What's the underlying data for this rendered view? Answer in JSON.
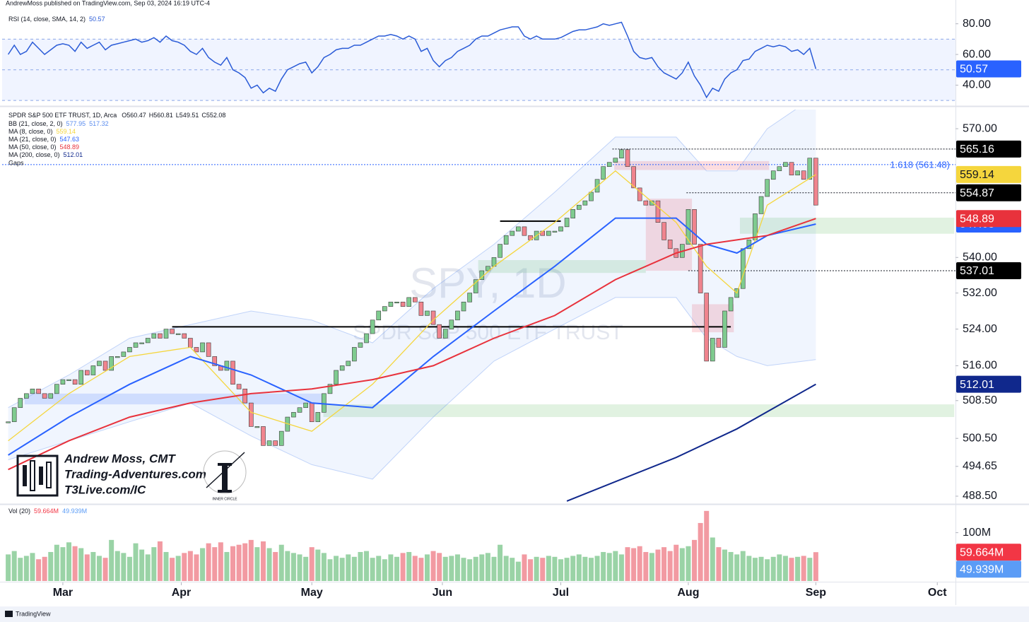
{
  "header": {
    "text": "AndrewMoss published on TradingView.com, Sep 03, 2024 16:19 UTC-4"
  },
  "footer": {
    "brand": "TradingView"
  },
  "branding": {
    "name": "Andrew Moss, CMT",
    "site": "Trading-Adventures.com",
    "link": "T3Live.com/IC",
    "badge": "INNER CIRCLE"
  },
  "chart_data": [
    {
      "type": "line",
      "title": "RSI (14, close, SMA, 14, 2)",
      "color": "#2a5bd7",
      "band_color": "#2962ff",
      "ylim": [
        27.3,
        90.9
      ],
      "yticks": [
        {
          "value": 80,
          "label": "80.00"
        },
        {
          "value": 60,
          "label": "60.00"
        },
        {
          "value": 40,
          "label": "40.00"
        }
      ],
      "band": [
        30,
        70
      ],
      "midline": 50,
      "xlim": [
        -1,
        156
      ],
      "values": [
        60,
        66,
        60,
        62,
        68,
        64,
        60,
        63,
        66,
        67,
        66,
        62,
        68,
        64,
        66,
        68,
        63,
        66,
        67,
        68,
        69,
        70,
        68,
        69,
        71,
        68,
        72,
        69,
        68,
        66,
        62,
        60,
        64,
        58,
        55,
        53,
        58,
        50,
        48,
        45,
        38,
        40,
        35,
        38,
        36,
        44,
        50,
        52,
        54,
        55,
        48,
        52,
        58,
        60,
        63,
        64,
        64,
        66,
        66,
        68,
        70,
        72,
        72,
        73,
        72,
        70,
        72,
        70,
        62,
        64,
        56,
        52,
        56,
        58,
        62,
        64,
        66,
        70,
        72,
        72,
        74,
        76,
        77,
        78,
        78,
        72,
        70,
        72,
        70,
        70,
        70,
        71,
        73,
        75,
        76,
        76,
        77,
        78,
        80,
        79,
        80,
        81,
        72,
        62,
        58,
        57,
        58,
        52,
        48,
        46,
        44,
        48,
        55,
        46,
        40,
        32,
        38,
        36,
        44,
        48,
        50,
        56,
        57,
        62,
        64,
        66,
        65,
        66,
        65,
        62,
        63,
        60,
        64,
        50.57
      ]
    },
    {
      "type": "candlestick",
      "title": "SPDR S&P 500 ETF TRUST, 1D, Arca",
      "quote": [
        "O560.47",
        "H560.81",
        "L549.51",
        "C552.08"
      ],
      "watermark": [
        "SPY, 1D",
        "SPDR S&P 500 ETF TRUST"
      ],
      "gaps_label": "Gaps",
      "log_scale": true,
      "ylim": [
        487.05,
        574.6
      ],
      "xlim": [
        -1,
        156
      ],
      "yticks": [
        {
          "value": 570,
          "label": "570.00"
        },
        {
          "value": 540,
          "label": "540.00"
        },
        {
          "value": 532,
          "label": "532.00"
        },
        {
          "value": 524,
          "label": "524.00"
        },
        {
          "value": 516,
          "label": "516.00"
        },
        {
          "value": 508.5,
          "label": "508.50"
        },
        {
          "value": 500.5,
          "label": "500.50"
        },
        {
          "value": 494.65,
          "label": "494.65"
        },
        {
          "value": 488.5,
          "label": "488.50"
        }
      ],
      "up_color": "#7fcb8f",
      "down_color": "#f0848e",
      "close": [
        504,
        507,
        509,
        510,
        511,
        510,
        509,
        510,
        512,
        513,
        513,
        512,
        515,
        514,
        516,
        517,
        515,
        518,
        518,
        519,
        520,
        521,
        521,
        522,
        523,
        522,
        524,
        523,
        523,
        522,
        520,
        519,
        521,
        518,
        516,
        515,
        517,
        512,
        511,
        508,
        503,
        503,
        499,
        500,
        499,
        502,
        505,
        506,
        507,
        508,
        504,
        506,
        510,
        512,
        515,
        516,
        517,
        520,
        521,
        523,
        526,
        528,
        529,
        530,
        530,
        529,
        531,
        530,
        527,
        528,
        525,
        522,
        524,
        526,
        528,
        530,
        532,
        535,
        537,
        538,
        540,
        543,
        545,
        546,
        547,
        545,
        544,
        546,
        545,
        546,
        546,
        547,
        549,
        551,
        552,
        553,
        555,
        558,
        561,
        562,
        563,
        565,
        561,
        556,
        553,
        552,
        553,
        548,
        544,
        542,
        540,
        543,
        551,
        543,
        532,
        517,
        522,
        520,
        528,
        531,
        533,
        542,
        544,
        550,
        554,
        558,
        560,
        561,
        562,
        559,
        560,
        558,
        563,
        552
      ],
      "indicators": [
        {
          "name": "BB (21, close, 2, 0)",
          "color": "#5b8def",
          "x": [
            0,
            10,
            20,
            30,
            40,
            50,
            60,
            70,
            80,
            90,
            100,
            110,
            115,
            120,
            125,
            133
          ],
          "upper": [
            507,
            514,
            522,
            525,
            528,
            526,
            521,
            533,
            543,
            555,
            568,
            568,
            560,
            560,
            570,
            577.95
          ],
          "lower": [
            496,
            500,
            504,
            508,
            501,
            495,
            492,
            505,
            517,
            524,
            531,
            531,
            522,
            518,
            516,
            517.32
          ]
        },
        {
          "name": "MA (8, close, 0)",
          "color": "#f5d63d",
          "text_color": "#131722",
          "x": [
            0,
            10,
            20,
            30,
            40,
            50,
            60,
            70,
            80,
            90,
            100,
            110,
            115,
            120,
            125,
            133
          ],
          "values": [
            500,
            510,
            518,
            520,
            506,
            502,
            512,
            526,
            538,
            548,
            560,
            548,
            538,
            532,
            552,
            559.14
          ]
        },
        {
          "name": "MA (21, close, 0)",
          "color": "#2962ff",
          "text_color": "#ffffff",
          "x": [
            0,
            10,
            20,
            30,
            40,
            50,
            60,
            70,
            80,
            90,
            100,
            110,
            115,
            120,
            125,
            133
          ],
          "values": [
            497,
            505,
            512,
            518,
            514,
            508,
            507,
            518,
            528,
            538,
            549,
            549,
            543,
            541,
            545,
            547.63
          ]
        },
        {
          "name": "MA (50, close, 0)",
          "color": "#e8323c",
          "text_color": "#ffffff",
          "x": [
            0,
            10,
            20,
            30,
            40,
            50,
            60,
            70,
            80,
            90,
            100,
            110,
            115,
            120,
            125,
            133
          ],
          "values": [
            494,
            500,
            505,
            508,
            510,
            511,
            513,
            516,
            522,
            527,
            535,
            541,
            543,
            544,
            545,
            548.89
          ]
        },
        {
          "name": "MA (200, close, 0)",
          "color": "#10288c",
          "text_color": "#ffffff",
          "x": [
            92,
            100,
            110,
            120,
            133
          ],
          "values": [
            487.5,
            491.5,
            496.5,
            502.5,
            512.01
          ]
        }
      ],
      "levels": [
        {
          "value": 565.16,
          "from": 99.5
        },
        {
          "value": 554.87,
          "from": 111.7
        },
        {
          "value": 537.01,
          "from": 112
        }
      ],
      "fib": {
        "value": 561.48,
        "label": "1.618 (561.48)",
        "color": "#2962ff"
      },
      "trendlines": [
        {
          "value": 524.5,
          "from": 27,
          "to": 119
        },
        {
          "value": 548.3,
          "from": 81,
          "to": 91
        }
      ],
      "zones": [
        {
          "from": 2.7,
          "to": 51.9,
          "low": 507.7,
          "high": 510,
          "color": "#2962ff"
        },
        {
          "from": 51.9,
          "to": 155.8,
          "low": 505,
          "high": 507.7,
          "color": "#4caf50"
        },
        {
          "from": 120.5,
          "to": 155.8,
          "low": 545.4,
          "high": 549.1,
          "color": "#4caf50"
        },
        {
          "from": 77.4,
          "to": 105,
          "low": 536.5,
          "high": 539.4,
          "color": "#4caf50"
        },
        {
          "from": 99.8,
          "to": 125.3,
          "low": 560.2,
          "high": 562.3,
          "color": "#f23645"
        },
        {
          "from": 105,
          "to": 112.6,
          "low": 537,
          "high": 553.5,
          "color": "#f23645"
        },
        {
          "from": 112.6,
          "to": 119.5,
          "low": 523.3,
          "high": 529.5,
          "color": "#f23645"
        }
      ]
    },
    {
      "type": "bar",
      "title": "Vol (20)",
      "ylim": [
        0,
        155
      ],
      "xlim": [
        -1,
        156
      ],
      "yticks": [
        {
          "value": 100,
          "label": "100M"
        }
      ],
      "xticks": [
        {
          "value": 9,
          "label": "Mar"
        },
        {
          "value": 28.5,
          "label": "Apr"
        },
        {
          "value": 50,
          "label": "May"
        },
        {
          "value": 71.5,
          "label": "Jun"
        },
        {
          "value": 91,
          "label": "Jul"
        },
        {
          "value": 112,
          "label": "Aug"
        },
        {
          "value": 133,
          "label": "Sep"
        },
        {
          "value": 153,
          "label": "Oct"
        }
      ],
      "up_color": "#9ad3a6",
      "down_color": "#f29aa2",
      "values": [
        55,
        62,
        48,
        52,
        58,
        45,
        50,
        60,
        75,
        70,
        80,
        72,
        68,
        55,
        60,
        52,
        48,
        85,
        62,
        58,
        50,
        78,
        65,
        55,
        70,
        82,
        60,
        48,
        52,
        58,
        62,
        55,
        68,
        78,
        70,
        80,
        60,
        72,
        75,
        78,
        85,
        70,
        82,
        68,
        60,
        75,
        62,
        58,
        55,
        50,
        70,
        65,
        58,
        45,
        52,
        48,
        55,
        50,
        60,
        62,
        48,
        52,
        45,
        55,
        50,
        58,
        60,
        52,
        48,
        55,
        62,
        58,
        50,
        52,
        55,
        48,
        45,
        50,
        55,
        58,
        50,
        75,
        52,
        48,
        40,
        55,
        45,
        50,
        48,
        52,
        50,
        45,
        48,
        52,
        55,
        50,
        48,
        52,
        60,
        58,
        62,
        55,
        70,
        68,
        72,
        60,
        58,
        65,
        70,
        62,
        75,
        68,
        72,
        85,
        120,
        145,
        90,
        70,
        65,
        60,
        55,
        62,
        52,
        48,
        50,
        45,
        50,
        55,
        52,
        48,
        50,
        52,
        48,
        59.664
      ],
      "current": {
        "value": 59.664,
        "label": "59.664M",
        "color": "#f23645"
      },
      "average": {
        "value": 49.939,
        "label": "49.939M",
        "color": "#5b9cf6"
      }
    }
  ]
}
